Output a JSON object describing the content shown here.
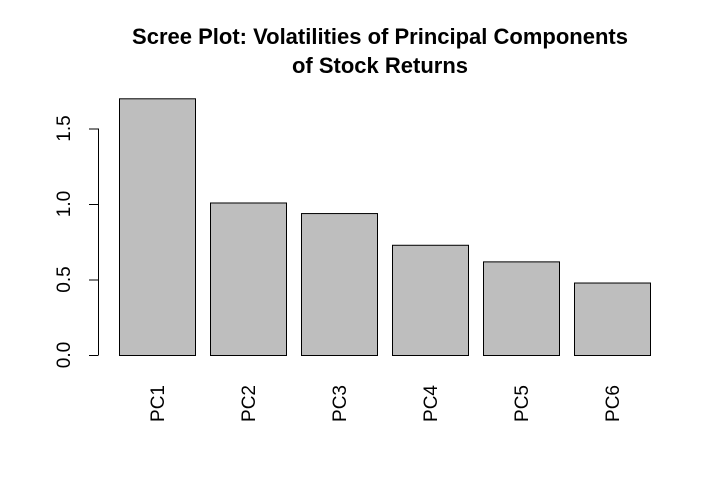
{
  "chart_data": {
    "type": "bar",
    "title_line1": "Scree Plot: Volatilities of Principal Components",
    "title_line2": "of Stock Returns",
    "xlabel": "",
    "ylabel": "",
    "categories": [
      "PC1",
      "PC2",
      "PC3",
      "PC4",
      "PC5",
      "PC6"
    ],
    "values": [
      1.7,
      1.01,
      0.94,
      0.73,
      0.62,
      0.48
    ],
    "ylim": [
      0,
      1.7
    ],
    "yticks": [
      0.0,
      0.5,
      1.0,
      1.5
    ],
    "ytick_labels": [
      "0.0",
      "0.5",
      "1.0",
      "1.5"
    ],
    "bar_color": "#bebebe",
    "bar_border_color": "#000000",
    "grid": false,
    "legend": "none"
  }
}
